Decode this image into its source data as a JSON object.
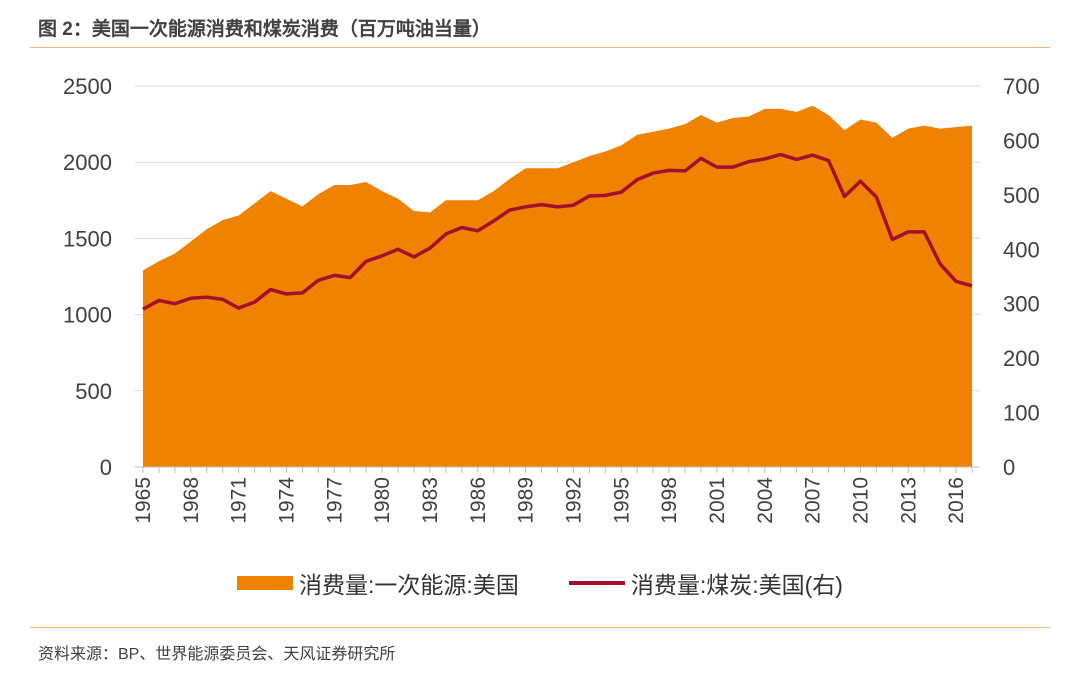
{
  "figure": {
    "title": "图 2：美国一次能源消费和煤炭消费（百万吨油当量）",
    "source": "资料来源：BP、世界能源委员会、天风证券研究所"
  },
  "colors": {
    "area": "#ef8200",
    "line": "#a50f2d",
    "rule": "#f0b477",
    "grid": "#d9d9d9"
  },
  "chart_data": {
    "type": "area+line",
    "x": [
      1965,
      1966,
      1967,
      1968,
      1969,
      1970,
      1971,
      1972,
      1973,
      1974,
      1975,
      1976,
      1977,
      1978,
      1979,
      1980,
      1981,
      1982,
      1983,
      1984,
      1985,
      1986,
      1987,
      1988,
      1989,
      1990,
      1991,
      1992,
      1993,
      1994,
      1995,
      1996,
      1997,
      1998,
      1999,
      2000,
      2001,
      2002,
      2003,
      2004,
      2005,
      2006,
      2007,
      2008,
      2009,
      2010,
      2011,
      2012,
      2013,
      2014,
      2015,
      2016,
      2017
    ],
    "x_tick_labels": [
      "1965",
      "1968",
      "1971",
      "1974",
      "1977",
      "1980",
      "1983",
      "1986",
      "1989",
      "1992",
      "1995",
      "1998",
      "2001",
      "2004",
      "2007",
      "2010",
      "2013",
      "2016"
    ],
    "series": [
      {
        "name": "消费量:一次能源:美国",
        "axis": "left",
        "type": "area",
        "values": [
          1290,
          1350,
          1400,
          1480,
          1560,
          1620,
          1650,
          1730,
          1810,
          1760,
          1710,
          1790,
          1850,
          1850,
          1870,
          1810,
          1760,
          1680,
          1670,
          1750,
          1750,
          1750,
          1810,
          1890,
          1960,
          1960,
          1960,
          2000,
          2040,
          2070,
          2110,
          2180,
          2200,
          2220,
          2250,
          2310,
          2260,
          2290,
          2300,
          2350,
          2350,
          2330,
          2370,
          2310,
          2210,
          2280,
          2260,
          2160,
          2220,
          2240,
          2220,
          2230,
          2240
        ]
      },
      {
        "name": "消费量:煤炭:美国(右)",
        "axis": "right",
        "type": "line",
        "values": [
          290,
          306,
          300,
          310,
          312,
          308,
          292,
          303,
          326,
          318,
          320,
          343,
          352,
          348,
          378,
          388,
          400,
          386,
          402,
          428,
          440,
          434,
          452,
          472,
          478,
          482,
          478,
          481,
          498,
          499,
          505,
          528,
          540,
          545,
          544,
          567,
          551,
          551,
          561,
          566,
          574,
          565,
          573,
          563,
          497,
          525,
          496,
          418,
          432,
          432,
          373,
          341,
          333
        ]
      }
    ],
    "left_axis": {
      "min": 0,
      "max": 2500,
      "ticks": [
        0,
        500,
        1000,
        1500,
        2000,
        2500
      ]
    },
    "right_axis": {
      "min": 0,
      "max": 700,
      "ticks": [
        0,
        100,
        200,
        300,
        400,
        500,
        600,
        700
      ]
    },
    "legend_position": "bottom"
  }
}
